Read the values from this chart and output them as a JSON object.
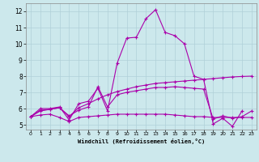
{
  "xlabel": "Windchill (Refroidissement éolien,°C)",
  "background_color": "#cce8ec",
  "line_color": "#aa00aa",
  "xlim": [
    -0.5,
    23.5
  ],
  "ylim": [
    4.7,
    12.5
  ],
  "xticks": [
    0,
    1,
    2,
    3,
    4,
    5,
    6,
    7,
    8,
    9,
    10,
    11,
    12,
    13,
    14,
    15,
    16,
    17,
    18,
    19,
    20,
    21,
    22,
    23
  ],
  "yticks": [
    5,
    6,
    7,
    8,
    9,
    10,
    11,
    12
  ],
  "series": [
    {
      "x": [
        0,
        1,
        2,
        3,
        4,
        5,
        6,
        7,
        8,
        9,
        10,
        11,
        12,
        13,
        14,
        15,
        16,
        17,
        18,
        19,
        20,
        21,
        22
      ],
      "y": [
        5.5,
        6.0,
        6.0,
        6.1,
        5.3,
        6.3,
        6.45,
        7.25,
        5.85,
        8.8,
        10.35,
        10.4,
        11.55,
        12.1,
        10.7,
        10.5,
        10.0,
        8.0,
        7.8,
        5.05,
        5.4,
        4.9,
        5.85
      ]
    },
    {
      "x": [
        0,
        1,
        2,
        3,
        4,
        5,
        6,
        7,
        8,
        9,
        10,
        11,
        12,
        13,
        14,
        15,
        16,
        17,
        18,
        19,
        20,
        21,
        22,
        23
      ],
      "y": [
        5.5,
        5.85,
        5.95,
        6.05,
        5.5,
        6.05,
        6.3,
        6.6,
        6.85,
        7.05,
        7.2,
        7.35,
        7.45,
        7.55,
        7.6,
        7.65,
        7.7,
        7.75,
        7.8,
        7.85,
        7.9,
        7.95,
        7.98,
        8.0
      ]
    },
    {
      "x": [
        0,
        1,
        2,
        3,
        4,
        5,
        6,
        7,
        8,
        9,
        10,
        11,
        12,
        13,
        14,
        15,
        16,
        17,
        18,
        19,
        20,
        21,
        22,
        23
      ],
      "y": [
        5.5,
        5.6,
        5.65,
        5.45,
        5.2,
        5.45,
        5.5,
        5.55,
        5.6,
        5.65,
        5.65,
        5.65,
        5.65,
        5.65,
        5.65,
        5.6,
        5.55,
        5.5,
        5.5,
        5.45,
        5.45,
        5.45,
        5.45,
        5.45
      ]
    },
    {
      "x": [
        0,
        1,
        2,
        3,
        4,
        5,
        6,
        7,
        8,
        9,
        10,
        11,
        12,
        13,
        14,
        15,
        16,
        17,
        18,
        19,
        20,
        21,
        22,
        23
      ],
      "y": [
        5.5,
        5.9,
        5.95,
        6.05,
        5.55,
        5.9,
        6.1,
        7.35,
        6.1,
        6.85,
        7.0,
        7.1,
        7.2,
        7.3,
        7.3,
        7.35,
        7.3,
        7.25,
        7.2,
        5.35,
        5.55,
        5.4,
        5.5,
        5.85
      ]
    }
  ]
}
